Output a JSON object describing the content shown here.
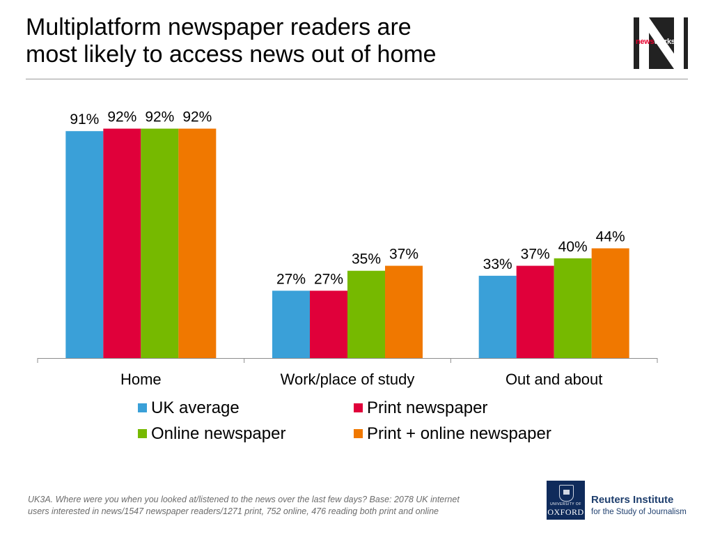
{
  "slide": {
    "title_line1": "Multiplatform newspaper readers are",
    "title_line2": "most likely to access news out of home",
    "footnote_line1": "UK3A. Where were you when you looked at/listened to the news over the last few days? Base: 2078 UK  internet",
    "footnote_line2": "users interested in news/1547 newspaper readers/1271 print, 752 online, 476 reading both print and online"
  },
  "logos": {
    "newsworks": {
      "part1": "news",
      "part2": "works",
      "letter": "N"
    },
    "oxford": {
      "university": "UNIVERSITY OF",
      "name": "OXFORD"
    },
    "reuters": {
      "line1": "Reuters Institute",
      "line2": "for the Study of Journalism"
    }
  },
  "chart_data": {
    "type": "bar",
    "categories": [
      "Home",
      "Work/place of study",
      "Out and about"
    ],
    "series": [
      {
        "name": "UK average",
        "values": [
          91,
          27,
          33
        ],
        "color": "#3aa0d8"
      },
      {
        "name": "Print newspaper",
        "values": [
          92,
          27,
          37
        ],
        "color": "#e0003a"
      },
      {
        "name": "Online newspaper",
        "values": [
          92,
          35,
          40
        ],
        "color": "#76b900"
      },
      {
        "name": "Print + online newspaper",
        "values": [
          92,
          37,
          44
        ],
        "color": "#f07800"
      }
    ],
    "data_label_suffix": "%",
    "ylim": [
      0,
      100
    ],
    "grid": false,
    "legend_position": "bottom",
    "title": "",
    "xlabel": "",
    "ylabel": ""
  }
}
